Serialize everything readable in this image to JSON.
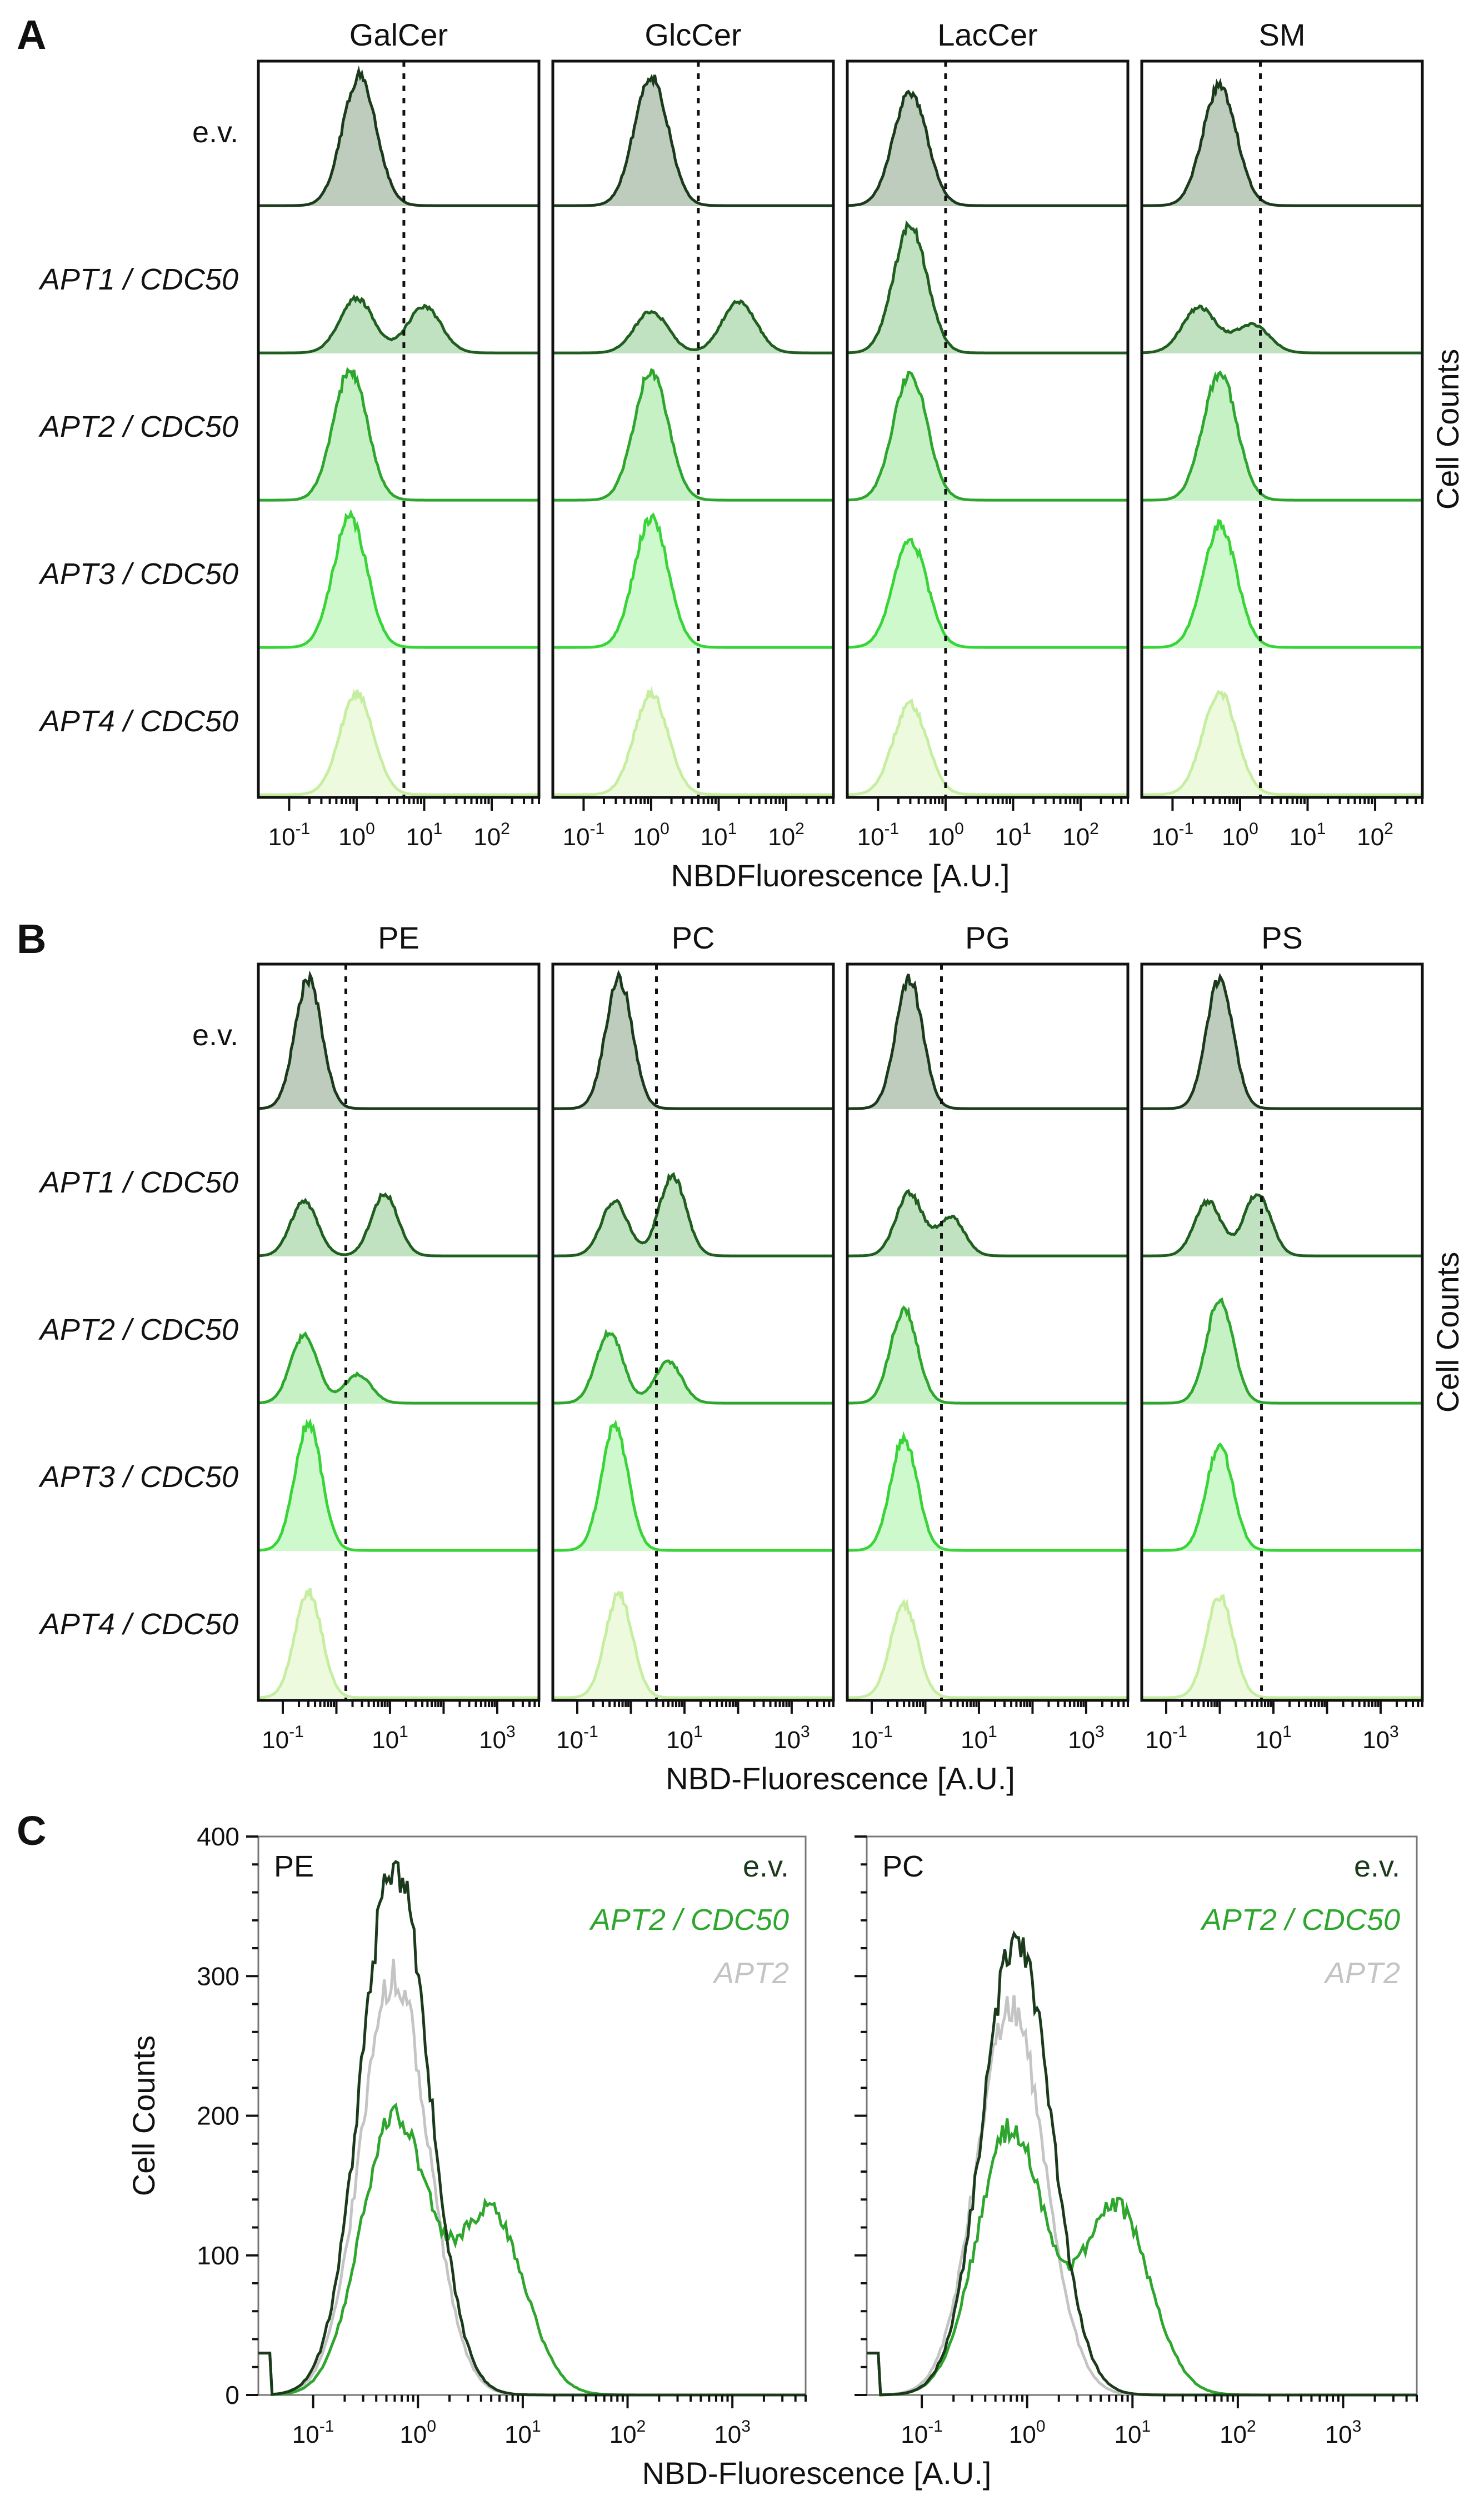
{
  "panels": {
    "A": "A",
    "B": "B",
    "C": "C"
  },
  "colors": {
    "ev": "#1b3a1b",
    "apt1": "#1f5e1f",
    "apt2": "#2ea62e",
    "apt3": "#38d438",
    "apt4": "#c6eea0",
    "apt2_only": "#c4c4c4"
  },
  "chart_data": [
    {
      "panel": "A",
      "type": "area",
      "title_columns": [
        "GalCer",
        "GlcCer",
        "LacCer",
        "SM"
      ],
      "row_labels": [
        "e.v.",
        "APT1 / CDC50",
        "APT2 / CDC50",
        "APT3 / CDC50",
        "APT4 / CDC50"
      ],
      "xscale": "log",
      "xticks": [
        "10^-1",
        "10^0",
        "10^1",
        "10^2"
      ],
      "xlabel": "NBDFluorescence [A.U.]",
      "ylabel": "Cell Counts",
      "gate": [
        5,
        5,
        1,
        2
      ],
      "peaks": [
        [
          [
            [
              1.1,
              1.0
            ]
          ],
          [
            [
              1.0,
              0.42
            ],
            [
              10,
              0.36
            ]
          ],
          [
            [
              0.8,
              1.0
            ]
          ],
          [
            [
              0.8,
              1.0
            ]
          ],
          [
            [
              1.0,
              0.78
            ]
          ]
        ],
        [
          [
            [
              1.0,
              1.0
            ]
          ],
          [
            [
              1.0,
              0.32
            ],
            [
              20,
              0.4
            ]
          ],
          [
            [
              1.0,
              1.0
            ]
          ],
          [
            [
              1.0,
              1.0
            ]
          ],
          [
            [
              1.0,
              0.78
            ]
          ]
        ],
        [
          [
            [
              0.3,
              0.88
            ]
          ],
          [
            [
              0.3,
              0.98
            ]
          ],
          [
            [
              0.3,
              0.98
            ]
          ],
          [
            [
              0.3,
              0.82
            ]
          ],
          [
            [
              0.3,
              0.7
            ]
          ]
        ],
        [
          [
            [
              0.5,
              0.92
            ]
          ],
          [
            [
              0.25,
              0.35
            ],
            [
              1.5,
              0.22
            ]
          ],
          [
            [
              0.5,
              0.98
            ]
          ],
          [
            [
              0.5,
              0.94
            ]
          ],
          [
            [
              0.5,
              0.8
            ]
          ]
        ]
      ]
    },
    {
      "panel": "B",
      "type": "area",
      "title_columns": [
        "PE",
        "PC",
        "PG",
        "PS"
      ],
      "row_labels": [
        "e.v.",
        "APT1 / CDC50",
        "APT2 / CDC50",
        "APT3 / CDC50",
        "APT4 / CDC50"
      ],
      "xscale": "log",
      "xticks": [
        "10^-1",
        "10^1",
        "10^3"
      ],
      "xlabel": "NBD-Fluorescence [A.U.]",
      "ylabel": "Cell Counts",
      "gate": [
        1.5,
        3,
        2,
        6
      ],
      "peaks": [
        [
          [
            [
              0.3,
              1.0
            ]
          ],
          [
            [
              0.25,
              0.42
            ],
            [
              8,
              0.48
            ]
          ],
          [
            [
              0.25,
              0.52
            ],
            [
              2.5,
              0.22
            ]
          ],
          [
            [
              0.3,
              0.98
            ]
          ],
          [
            [
              0.3,
              0.82
            ]
          ]
        ],
        [
          [
            [
              0.6,
              1.0
            ]
          ],
          [
            [
              0.5,
              0.42
            ],
            [
              6,
              0.62
            ]
          ],
          [
            [
              0.4,
              0.55
            ],
            [
              5,
              0.32
            ]
          ],
          [
            [
              0.5,
              0.96
            ]
          ],
          [
            [
              0.6,
              0.8
            ]
          ]
        ],
        [
          [
            [
              0.5,
              1.0
            ]
          ],
          [
            [
              0.5,
              0.48
            ],
            [
              3,
              0.3
            ]
          ],
          [
            [
              0.4,
              0.72
            ]
          ],
          [
            [
              0.4,
              0.86
            ]
          ],
          [
            [
              0.4,
              0.72
            ]
          ]
        ],
        [
          [
            [
              1.0,
              1.0
            ]
          ],
          [
            [
              0.6,
              0.42
            ],
            [
              5,
              0.48
            ]
          ],
          [
            [
              1.0,
              0.8
            ]
          ],
          [
            [
              1.0,
              0.8
            ]
          ],
          [
            [
              1.0,
              0.78
            ]
          ]
        ]
      ]
    },
    {
      "panel": "C",
      "type": "line",
      "subplots": [
        "PE",
        "PC"
      ],
      "xscale": "log",
      "xticks": [
        "10^-1",
        "10^0",
        "10^1",
        "10^2",
        "10^3"
      ],
      "xlabel": "NBD-Fluorescence [A.U.]",
      "ylabel": "Cell Counts",
      "ylim": [
        0,
        400
      ],
      "yticks": [
        0,
        100,
        200,
        300,
        400
      ],
      "series": [
        {
          "name": "e.v.",
          "color_key": "ev",
          "PE": [
            [
              0.6,
              380
            ]
          ],
          "PC": [
            [
              0.8,
              330
            ]
          ]
        },
        {
          "name": "APT2 / CDC50",
          "color_key": "apt2",
          "PE": [
            [
              0.6,
              200
            ],
            [
              5,
              130
            ]
          ],
          "PC": [
            [
              0.7,
              190
            ],
            [
              7,
              135
            ]
          ]
        },
        {
          "name": "APT2",
          "color_key": "apt2_only",
          "PE": [
            [
              0.6,
              300
            ]
          ],
          "PC": [
            [
              0.7,
              280
            ]
          ]
        }
      ]
    }
  ]
}
